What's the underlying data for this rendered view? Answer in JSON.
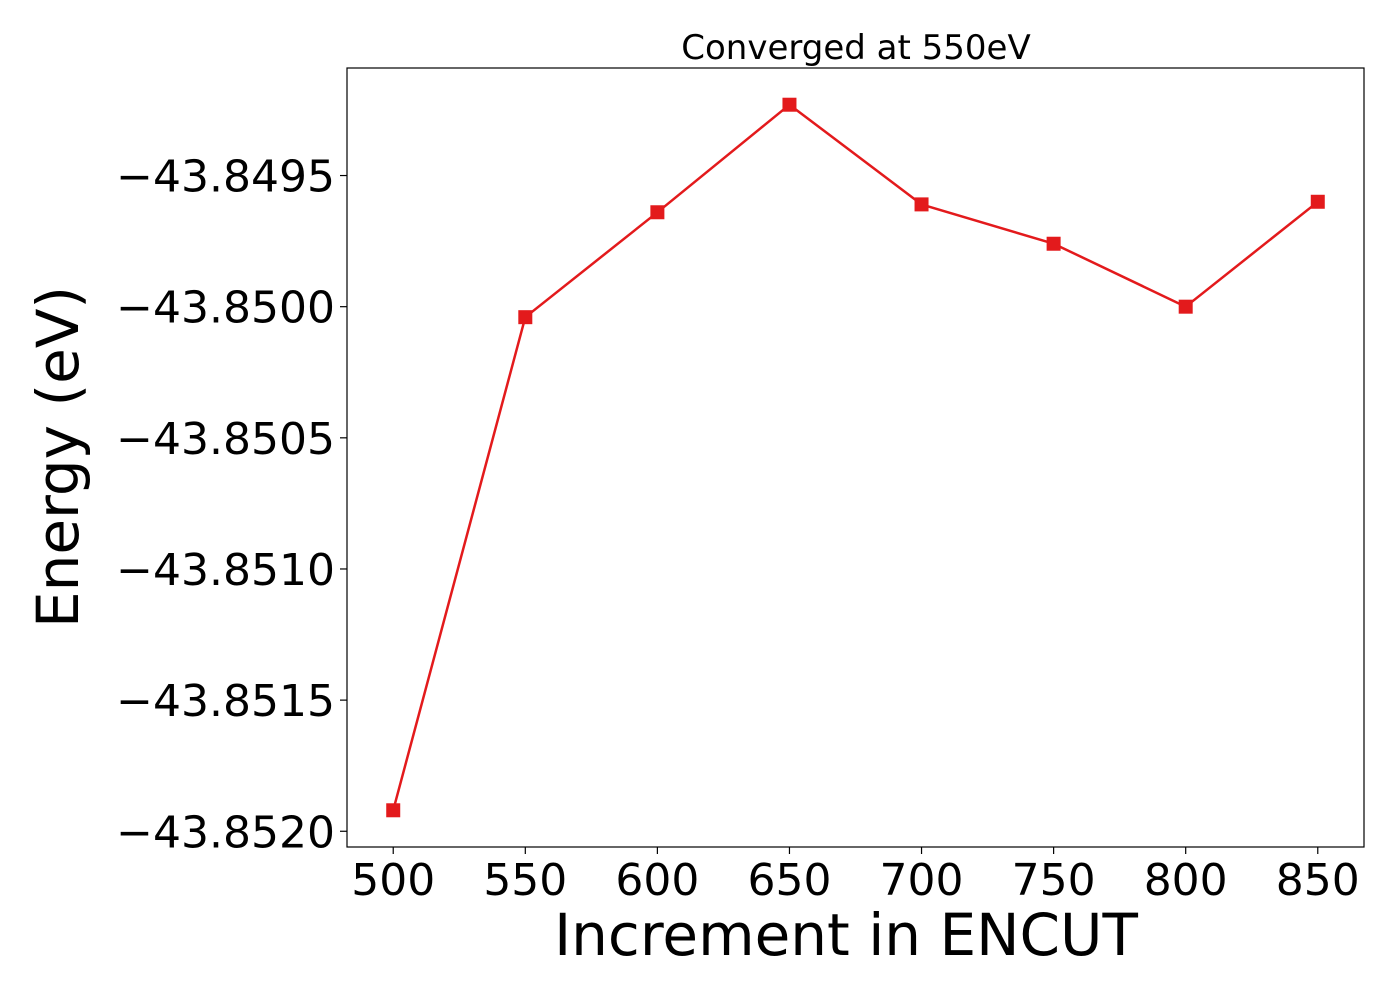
{
  "chart_data": {
    "type": "line",
    "title": "Converged at 550eV",
    "xlabel": "Increment in ENCUT",
    "ylabel": "Energy (eV)",
    "x": [
      500,
      550,
      600,
      650,
      700,
      750,
      800,
      850
    ],
    "series": [
      {
        "values": [
          -43.85192,
          -43.85004,
          -43.84964,
          -43.84923,
          -43.84961,
          -43.84976,
          -43.85,
          -43.8496
        ]
      }
    ],
    "xticks": [
      500,
      550,
      600,
      650,
      700,
      750,
      800,
      850
    ],
    "xtick_labels": [
      "500",
      "550",
      "600",
      "650",
      "700",
      "750",
      "800",
      "850"
    ],
    "yticks": [
      -43.8495,
      -43.85,
      -43.8505,
      -43.851,
      -43.8515,
      -43.852
    ],
    "ytick_labels": [
      "−43.8495",
      "−43.8500",
      "−43.8505",
      "−43.8510",
      "−43.8515",
      "−43.8520"
    ],
    "xlim": [
      482.5,
      867.5
    ],
    "ylim": [
      -43.85206,
      -43.84909
    ],
    "grid": false,
    "line_color": "#e31a1c",
    "marker": "square"
  }
}
